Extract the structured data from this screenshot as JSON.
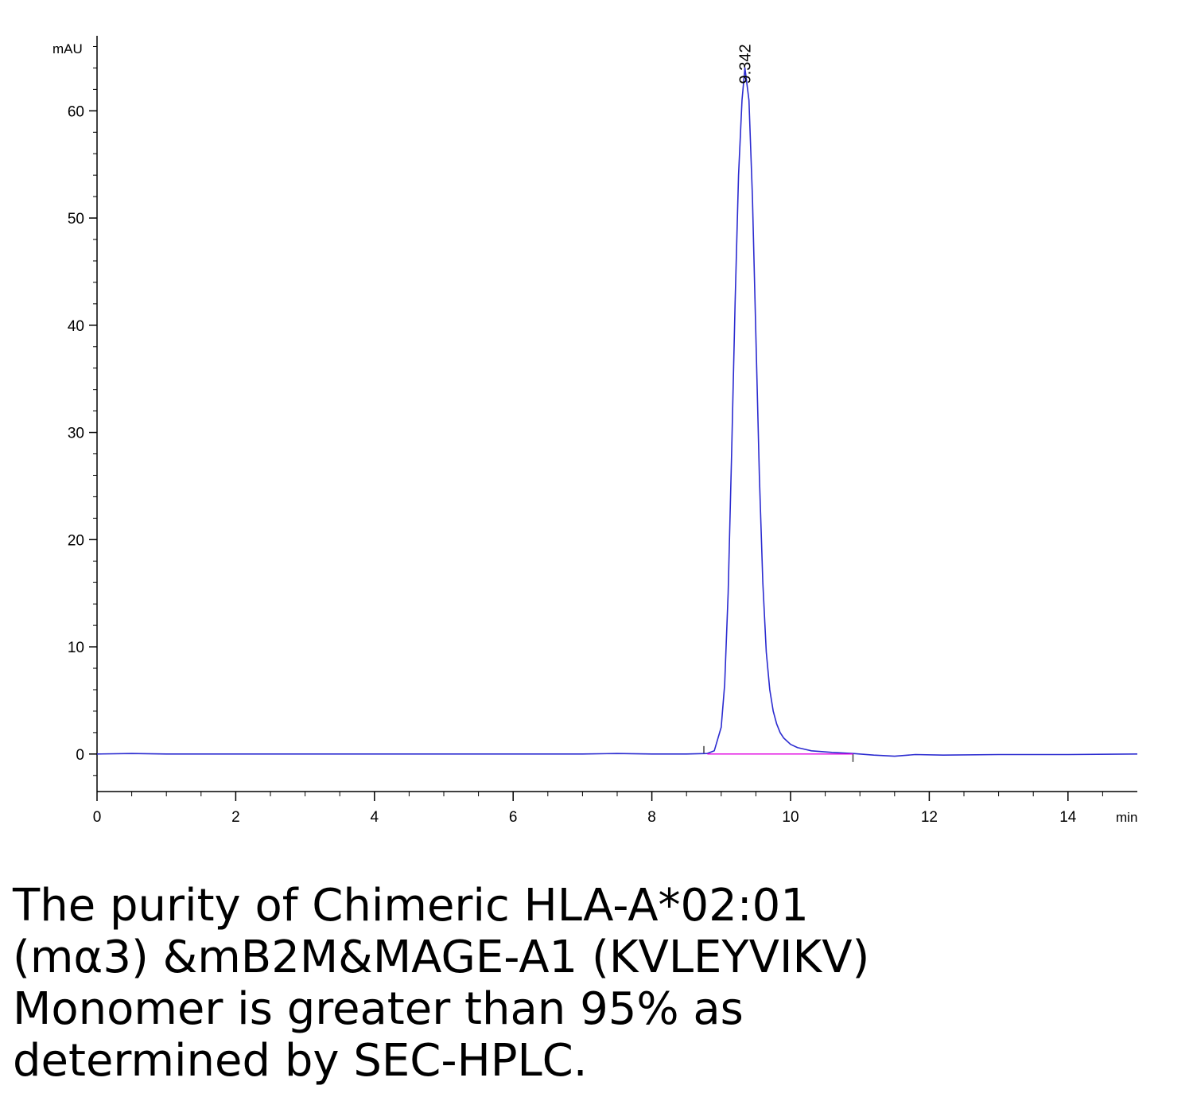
{
  "chart_data": {
    "type": "line",
    "title": "",
    "ylabel": "mAU",
    "xlabel": "min",
    "xlim": [
      0,
      15
    ],
    "ylim": [
      -3.5,
      67
    ],
    "x_ticks": [
      0,
      2,
      4,
      6,
      8,
      10,
      12,
      14
    ],
    "x_tick_labels": [
      "0",
      "2",
      "4",
      "6",
      "8",
      "10",
      "12",
      "14"
    ],
    "y_ticks": [
      0,
      10,
      20,
      30,
      40,
      50,
      60
    ],
    "y_tick_labels": [
      "0",
      "10",
      "20",
      "30",
      "40",
      "50",
      "60"
    ],
    "grid": false,
    "series": [
      {
        "color": "#2b2bd0",
        "x": [
          0,
          0.5,
          1,
          2,
          3,
          4,
          5,
          6,
          7,
          7.5,
          8,
          8.5,
          8.8,
          8.9,
          9.0,
          9.05,
          9.1,
          9.15,
          9.2,
          9.25,
          9.3,
          9.342,
          9.4,
          9.45,
          9.5,
          9.55,
          9.6,
          9.65,
          9.7,
          9.75,
          9.8,
          9.85,
          9.9,
          10.0,
          10.1,
          10.3,
          10.6,
          10.9,
          11.2,
          11.5,
          11.8,
          12.2,
          13,
          14,
          15
        ],
        "y": [
          0,
          0.05,
          0,
          0,
          0,
          0,
          0,
          0,
          0,
          0.05,
          0,
          0,
          0.05,
          0.3,
          2.5,
          6.5,
          15,
          28,
          42,
          54,
          61,
          64,
          61,
          52,
          39,
          26,
          16,
          9.5,
          6,
          4,
          2.8,
          2.0,
          1.5,
          0.9,
          0.6,
          0.3,
          0.15,
          0.05,
          -0.1,
          -0.2,
          -0.05,
          -0.1,
          -0.05,
          -0.05,
          0
        ]
      },
      {
        "color": "#e000e0",
        "x": [
          8.8,
          10.9
        ],
        "y": [
          0,
          0
        ]
      }
    ],
    "annotations": [
      {
        "text": "9.342",
        "x": 9.342,
        "y": 64
      }
    ]
  },
  "caption": {
    "lines": [
      "The purity of Chimeric HLA-A*02:01",
      "(mα3) &mB2M&MAGE-A1 (KVLEYVIKV)",
      "Monomer is greater than 95% as",
      "determined by SEC-HPLC."
    ]
  }
}
